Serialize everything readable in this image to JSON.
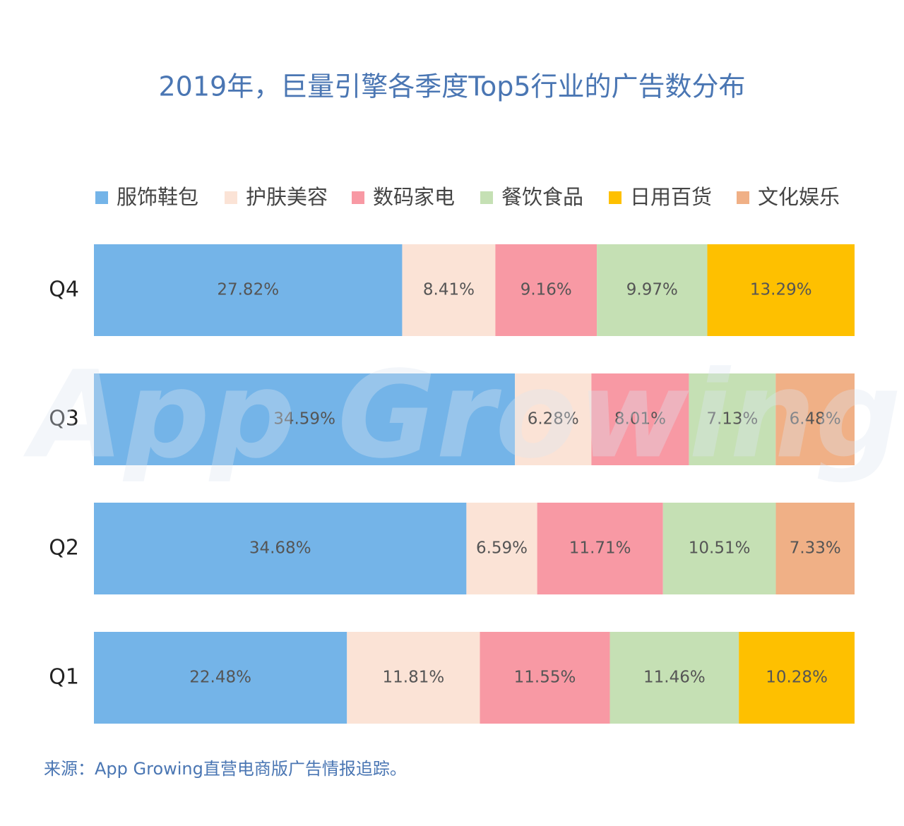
{
  "chart_data": {
    "type": "stacked-bar-horizontal",
    "title": "2019年，巨量引擎各季度Top5行业的广告数分布",
    "categories": [
      "Q4",
      "Q3",
      "Q2",
      "Q1"
    ],
    "series": [
      {
        "name": "服饰鞋包",
        "color": "#74b4e8",
        "values": [
          27.82,
          34.59,
          34.68,
          22.48
        ],
        "value_labels": [
          "27.82%",
          "34.59%",
          "34.68%",
          "22.48%"
        ]
      },
      {
        "name": "护肤美容",
        "color": "#fbe3d6",
        "values": [
          8.41,
          6.28,
          6.59,
          11.81
        ],
        "value_labels": [
          "8.41%",
          "6.28%",
          "6.59%",
          "11.81%"
        ]
      },
      {
        "name": "数码家电",
        "color": "#f899a4",
        "values": [
          9.16,
          8.01,
          11.71,
          11.55
        ],
        "value_labels": [
          "9.16%",
          "8.01%",
          "11.71%",
          "11.55%"
        ]
      },
      {
        "name": "餐饮食品",
        "color": "#c5e0b4",
        "values": [
          9.97,
          7.13,
          10.51,
          11.46
        ],
        "value_labels": [
          "9.97%",
          "7.13%",
          "10.51%",
          "11.46%"
        ]
      },
      {
        "name": "日用百货",
        "color": "#fec000",
        "values": [
          13.29,
          null,
          null,
          10.28
        ],
        "value_labels": [
          "13.29%",
          null,
          null,
          "10.28%"
        ]
      },
      {
        "name": "文化娱乐",
        "color": "#f0b086",
        "values": [
          null,
          6.48,
          7.33,
          null
        ],
        "value_labels": [
          null,
          "6.48%",
          "7.33%",
          null
        ]
      }
    ],
    "watermark": "App Growing",
    "source": "来源：App Growing直营电商版广告情报追踪。"
  }
}
